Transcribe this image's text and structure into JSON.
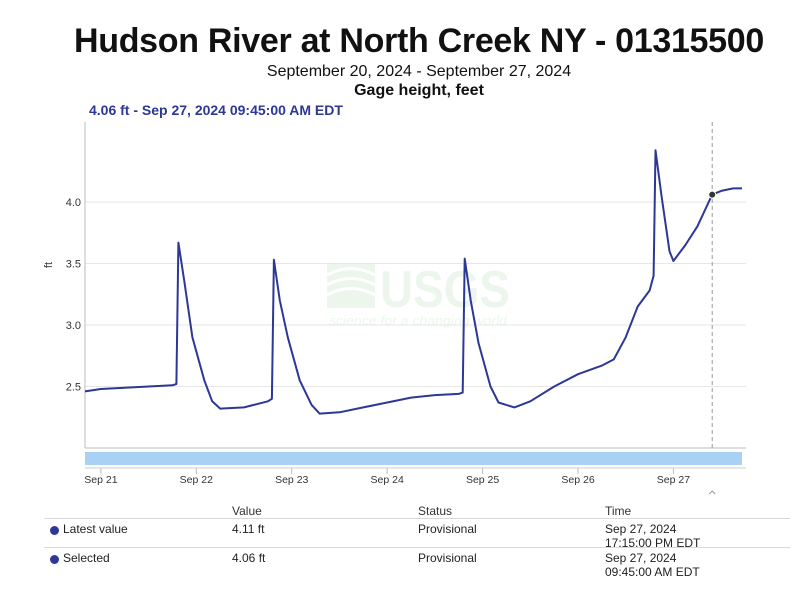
{
  "header": {
    "title": "Hudson River at North Creek NY - 01315500",
    "date_range": "September 20, 2024 - September 27, 2024",
    "parameter": "Gage height, feet",
    "readout": "4.06 ft - Sep 27, 2024 09:45:00 AM EDT"
  },
  "watermark": {
    "logo_text": "USGS",
    "tagline": "science for a changing world"
  },
  "colors": {
    "line": "#2d3796",
    "navigator_band": "#a9d0f5",
    "grid": "#e6e6e6",
    "title": "#111111"
  },
  "chart_data": {
    "type": "line",
    "title": "Hudson River at North Creek NY - 01315500",
    "subtitle": "September 20, 2024 - September 27, 2024",
    "ylabel": "ft",
    "xlabel": "",
    "ylim": [
      2.0,
      4.65
    ],
    "xlim": [
      "2024-09-20T20:00",
      "2024-09-27T18:15"
    ],
    "yticks": [
      2.5,
      3.0,
      3.5,
      4.0
    ],
    "ytick_labels": [
      "2.5",
      "3.0",
      "3.5",
      "4.0"
    ],
    "xticks": [
      "2024-09-21T00:00",
      "2024-09-22T00:00",
      "2024-09-23T00:00",
      "2024-09-24T00:00",
      "2024-09-25T00:00",
      "2024-09-26T00:00",
      "2024-09-27T00:00"
    ],
    "xtick_labels": [
      "Sep 21",
      "Sep 22",
      "Sep 23",
      "Sep 24",
      "Sep 25",
      "Sep 26",
      "Sep 27"
    ],
    "grid": true,
    "selected_time": "2024-09-27T09:45",
    "selected_value": 4.06,
    "series": [
      {
        "x": [
          "2024-09-20T20:00",
          "2024-09-21T00:00",
          "2024-09-21T06:00",
          "2024-09-21T12:00",
          "2024-09-21T18:00",
          "2024-09-21T19:00",
          "2024-09-21T19:30",
          "2024-09-21T21:00",
          "2024-09-21T23:00",
          "2024-09-22T02:00",
          "2024-09-22T04:00",
          "2024-09-22T06:00",
          "2024-09-22T12:00",
          "2024-09-22T18:00",
          "2024-09-22T19:00",
          "2024-09-22T19:30",
          "2024-09-22T21:00",
          "2024-09-22T23:00",
          "2024-09-23T02:00",
          "2024-09-23T05:00",
          "2024-09-23T07:00",
          "2024-09-23T12:00",
          "2024-09-23T18:00",
          "2024-09-24T00:00",
          "2024-09-24T06:00",
          "2024-09-24T12:00",
          "2024-09-24T18:00",
          "2024-09-24T19:00",
          "2024-09-24T19:30",
          "2024-09-24T21:00",
          "2024-09-24T23:00",
          "2024-09-25T02:00",
          "2024-09-25T04:00",
          "2024-09-25T08:00",
          "2024-09-25T12:00",
          "2024-09-25T18:00",
          "2024-09-26T00:00",
          "2024-09-26T06:00",
          "2024-09-26T09:00",
          "2024-09-26T12:00",
          "2024-09-26T15:00",
          "2024-09-26T18:00",
          "2024-09-26T19:00",
          "2024-09-26T19:30",
          "2024-09-26T21:00",
          "2024-09-26T23:00",
          "2024-09-27T00:00",
          "2024-09-27T03:00",
          "2024-09-27T06:00",
          "2024-09-27T09:45",
          "2024-09-27T12:00",
          "2024-09-27T15:00",
          "2024-09-27T17:15"
        ],
        "y": [
          2.46,
          2.48,
          2.49,
          2.5,
          2.51,
          2.52,
          3.67,
          3.35,
          2.9,
          2.55,
          2.38,
          2.32,
          2.33,
          2.38,
          2.4,
          3.53,
          3.2,
          2.9,
          2.55,
          2.35,
          2.28,
          2.29,
          2.33,
          2.37,
          2.41,
          2.43,
          2.44,
          2.45,
          3.54,
          3.2,
          2.85,
          2.5,
          2.37,
          2.33,
          2.38,
          2.5,
          2.6,
          2.67,
          2.72,
          2.9,
          3.15,
          3.28,
          3.4,
          4.42,
          4.05,
          3.6,
          3.52,
          3.65,
          3.8,
          4.06,
          4.09,
          4.11,
          4.11
        ]
      }
    ]
  },
  "table": {
    "headers": {
      "value": "Value",
      "status": "Status",
      "time": "Time"
    },
    "rows": [
      {
        "label": "Latest value",
        "value": "4.11 ft",
        "status": "Provisional",
        "time_date": "Sep 27, 2024",
        "time_clock": "17:15:00 PM EDT"
      },
      {
        "label": "Selected",
        "value": "4.06 ft",
        "status": "Provisional",
        "time_date": "Sep 27, 2024",
        "time_clock": "09:45:00 AM EDT"
      }
    ]
  }
}
